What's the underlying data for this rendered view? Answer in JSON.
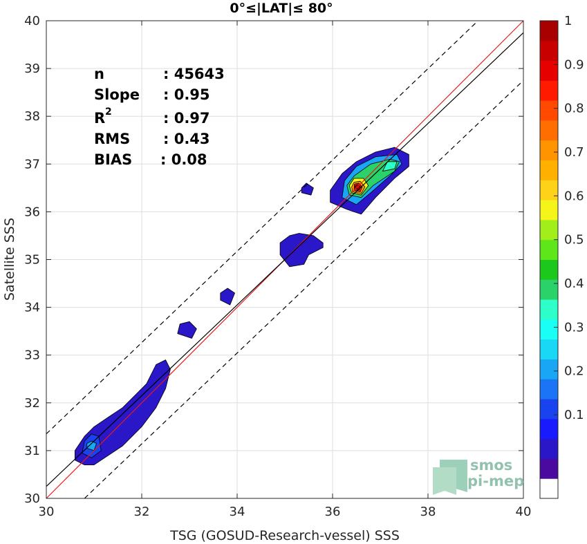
{
  "chart_data": {
    "type": "contour-scatter",
    "title": "0°≤|LAT|≤ 80°",
    "xlabel": "TSG (GOSUD-Research-vessel) SSS",
    "ylabel": "Satellite SSS",
    "xlim": [
      30,
      40
    ],
    "ylim": [
      30,
      40
    ],
    "x_ticks": [
      "30",
      "32",
      "34",
      "36",
      "38",
      "40"
    ],
    "y_ticks": [
      "30",
      "31",
      "32",
      "33",
      "34",
      "35",
      "36",
      "37",
      "38",
      "39",
      "40"
    ],
    "grid": true,
    "stats": [
      {
        "label": "n",
        "value": ": 45643"
      },
      {
        "label": "Slope",
        "value": ": 0.95"
      },
      {
        "label": "R",
        "sup": "2",
        "value": ": 0.97"
      },
      {
        "label": "RMS",
        "value": ": 0.43"
      },
      {
        "label": "BIAS",
        "value": ": 0.08"
      }
    ],
    "lines": [
      {
        "name": "one-to-one",
        "color": "#e41a1c",
        "points": [
          [
            30,
            30
          ],
          [
            40,
            40
          ]
        ]
      },
      {
        "name": "regression",
        "color": "#000000",
        "points": [
          [
            30,
            30.25
          ],
          [
            40,
            39.75
          ]
        ]
      },
      {
        "name": "upper-bound",
        "color": "#000000",
        "dash": true,
        "points": [
          [
            30,
            31.35
          ],
          [
            39.05,
            40
          ]
        ]
      },
      {
        "name": "lower-bound",
        "color": "#000000",
        "dash": true,
        "points": [
          [
            30.8,
            30
          ],
          [
            40,
            38.75
          ]
        ]
      }
    ],
    "density_regions": [
      {
        "level": 0.1,
        "color": "#2a17c8",
        "points": [
          [
            30.6,
            30.8
          ],
          [
            30.8,
            30.7
          ],
          [
            31.0,
            30.7
          ],
          [
            31.3,
            30.9
          ],
          [
            31.6,
            31.1
          ],
          [
            32.0,
            31.5
          ],
          [
            32.3,
            31.9
          ],
          [
            32.5,
            32.3
          ],
          [
            32.6,
            32.7
          ],
          [
            32.5,
            32.9
          ],
          [
            32.3,
            32.8
          ],
          [
            32.1,
            32.4
          ],
          [
            31.9,
            32.2
          ],
          [
            31.6,
            31.9
          ],
          [
            31.3,
            31.7
          ],
          [
            31.0,
            31.5
          ],
          [
            30.8,
            31.3
          ],
          [
            30.6,
            31.0
          ]
        ]
      },
      {
        "level": 0.2,
        "color": "#1a43f0",
        "points": [
          [
            30.75,
            30.95
          ],
          [
            30.95,
            30.85
          ],
          [
            31.15,
            31.0
          ],
          [
            31.1,
            31.3
          ],
          [
            30.95,
            31.35
          ],
          [
            30.8,
            31.2
          ]
        ]
      },
      {
        "level": 0.3,
        "color": "#19a7f5",
        "points": [
          [
            30.85,
            31.05
          ],
          [
            31.0,
            31.0
          ],
          [
            31.05,
            31.15
          ],
          [
            30.95,
            31.2
          ],
          [
            30.85,
            31.15
          ]
        ]
      },
      {
        "level": 0.1,
        "color": "#2a17c8",
        "points": [
          [
            32.75,
            33.45
          ],
          [
            33.05,
            33.35
          ],
          [
            33.15,
            33.55
          ],
          [
            33.0,
            33.7
          ],
          [
            32.8,
            33.65
          ]
        ]
      },
      {
        "level": 0.1,
        "color": "#2a17c8",
        "points": [
          [
            33.65,
            34.15
          ],
          [
            33.85,
            34.05
          ],
          [
            33.95,
            34.3
          ],
          [
            33.8,
            34.4
          ],
          [
            33.65,
            34.3
          ]
        ]
      },
      {
        "level": 0.1,
        "color": "#2a17c8",
        "points": [
          [
            34.9,
            35.1
          ],
          [
            35.1,
            34.85
          ],
          [
            35.4,
            34.9
          ],
          [
            35.5,
            35.1
          ],
          [
            35.8,
            35.25
          ],
          [
            35.8,
            35.35
          ],
          [
            35.6,
            35.5
          ],
          [
            35.3,
            35.55
          ],
          [
            35.1,
            35.5
          ],
          [
            34.9,
            35.35
          ]
        ]
      },
      {
        "level": 0.1,
        "color": "#2a17c8",
        "points": [
          [
            35.35,
            36.4
          ],
          [
            35.55,
            36.35
          ],
          [
            35.6,
            36.5
          ],
          [
            35.45,
            36.6
          ],
          [
            35.35,
            36.5
          ]
        ]
      },
      {
        "level": 0.1,
        "color": "#2a17c8",
        "points": [
          [
            35.95,
            36.2
          ],
          [
            36.3,
            36.05
          ],
          [
            36.6,
            35.95
          ],
          [
            36.9,
            36.3
          ],
          [
            37.3,
            36.7
          ],
          [
            37.6,
            36.95
          ],
          [
            37.6,
            37.2
          ],
          [
            37.3,
            37.35
          ],
          [
            36.9,
            37.25
          ],
          [
            36.5,
            37.05
          ],
          [
            36.2,
            36.8
          ],
          [
            35.95,
            36.45
          ]
        ]
      },
      {
        "level": 0.3,
        "color": "#19a7f5",
        "points": [
          [
            36.2,
            36.3
          ],
          [
            36.5,
            36.15
          ],
          [
            36.8,
            36.4
          ],
          [
            37.2,
            36.75
          ],
          [
            37.45,
            37.0
          ],
          [
            37.35,
            37.2
          ],
          [
            36.9,
            37.15
          ],
          [
            36.5,
            36.95
          ],
          [
            36.25,
            36.65
          ]
        ]
      },
      {
        "level": 0.5,
        "color": "#2bd26a",
        "points": [
          [
            36.35,
            36.35
          ],
          [
            36.6,
            36.3
          ],
          [
            36.85,
            36.55
          ],
          [
            37.3,
            36.85
          ],
          [
            37.4,
            37.05
          ],
          [
            37.2,
            37.1
          ],
          [
            36.8,
            37.0
          ],
          [
            36.45,
            36.75
          ],
          [
            36.3,
            36.55
          ]
        ]
      },
      {
        "level": 0.65,
        "color": "#f5f51a",
        "points": [
          [
            36.4,
            36.4
          ],
          [
            36.6,
            36.35
          ],
          [
            36.75,
            36.55
          ],
          [
            36.65,
            36.7
          ],
          [
            36.45,
            36.7
          ],
          [
            36.35,
            36.55
          ]
        ]
      },
      {
        "level": 0.75,
        "color": "#ff9400",
        "points": [
          [
            36.42,
            36.42
          ],
          [
            36.6,
            36.38
          ],
          [
            36.68,
            36.52
          ],
          [
            36.58,
            36.64
          ],
          [
            36.45,
            36.62
          ],
          [
            36.4,
            36.52
          ]
        ]
      },
      {
        "level": 0.9,
        "color": "#ff1a00",
        "points": [
          [
            36.45,
            36.45
          ],
          [
            36.58,
            36.42
          ],
          [
            36.62,
            36.52
          ],
          [
            36.55,
            36.6
          ],
          [
            36.46,
            36.58
          ]
        ]
      },
      {
        "level": 1.0,
        "color": "#a80000",
        "points": [
          [
            36.48,
            36.48
          ],
          [
            36.56,
            36.46
          ],
          [
            36.58,
            36.53
          ],
          [
            36.52,
            36.57
          ],
          [
            36.47,
            36.54
          ]
        ]
      },
      {
        "level": 0.4,
        "color": "#2dffc8",
        "points": [
          [
            37.05,
            36.85
          ],
          [
            37.3,
            36.9
          ],
          [
            37.35,
            37.05
          ],
          [
            37.15,
            37.05
          ]
        ]
      }
    ]
  },
  "colorbar": {
    "labels": [
      "1",
      "0.9",
      "0.8",
      "0.7",
      "0.6",
      "0.5",
      "0.4",
      "0.3",
      "0.2",
      "0.1"
    ],
    "colors": [
      "#ffffff",
      "#4a0aa0",
      "#2a17c8",
      "#1a1aff",
      "#1a43f0",
      "#1a74f5",
      "#19a7f5",
      "#19d8f5",
      "#19fff5",
      "#2dffc8",
      "#2bd26a",
      "#1dc81d",
      "#5ee61a",
      "#a2ee1a",
      "#f5f51a",
      "#ffd21a",
      "#ffb000",
      "#ff9400",
      "#ff6e00",
      "#ff4a00",
      "#ff1a00",
      "#e60000",
      "#c80000",
      "#a80000"
    ]
  },
  "logo": {
    "line1": "smos",
    "line2": "pi-mep"
  }
}
